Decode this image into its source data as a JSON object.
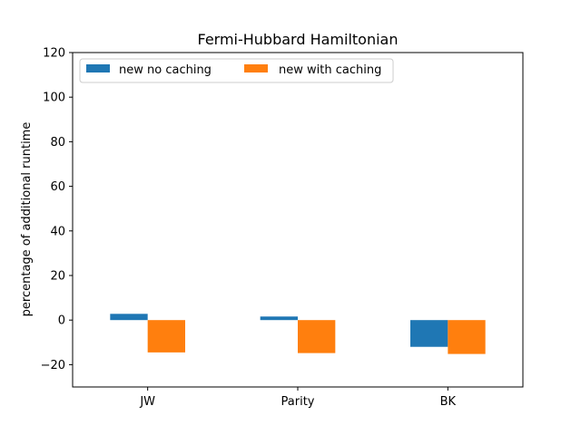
{
  "chart_data": {
    "type": "bar",
    "title": "Fermi-Hubbard Hamiltonian",
    "xlabel": "",
    "ylabel": "percentage of additional runtime",
    "categories": [
      "JW",
      "Parity",
      "BK"
    ],
    "series": [
      {
        "name": "new no caching",
        "values": [
          2.8,
          1.6,
          -12.0
        ],
        "color": "#1f77b4"
      },
      {
        "name": "new with caching",
        "values": [
          -14.5,
          -14.8,
          -15.2
        ],
        "color": "#ff7f0e"
      }
    ],
    "ylim": [
      -30,
      120
    ],
    "yticks": [
      -20,
      0,
      20,
      40,
      60,
      80,
      100,
      120
    ],
    "yticklabels": [
      "−20",
      "0",
      "20",
      "40",
      "60",
      "80",
      "100",
      "120"
    ],
    "grid": false,
    "legend_position": "top-left",
    "legend_columns": 2
  }
}
